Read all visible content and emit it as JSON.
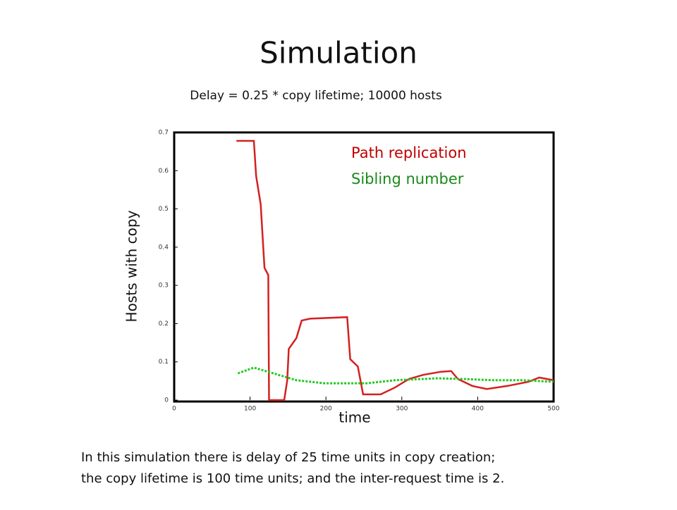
{
  "chart_data": {
    "type": "line",
    "title": "Simulation",
    "subtitle": "Delay = 0.25 * copy lifetime; 10000 hosts",
    "y_label": "Hosts with copy",
    "x_label": "time",
    "caption": [
      "In this simulation there is delay of 25 time units in copy creation;",
      "the copy lifetime is 100 time units; and the inter-request time is 2."
    ],
    "xlim": [
      0,
      500
    ],
    "xticks": [
      0,
      100,
      200,
      300,
      400,
      500
    ],
    "ylim": [
      0,
      0.7
    ],
    "yticks": [
      0,
      0.1,
      0.2,
      0.3,
      0.4,
      0.5,
      0.6,
      0.7
    ],
    "legend": "upper right",
    "series": [
      {
        "name": "Path replication",
        "color": "#d42020",
        "x": [
          82,
          105,
          108,
          114,
          119,
          124,
          125,
          145,
          149,
          151,
          161,
          168,
          179,
          228,
          232,
          242,
          249,
          272,
          291,
          309,
          328,
          351,
          365,
          374,
          393,
          412,
          439,
          467,
          481,
          500
        ],
        "values": [
          0.678,
          0.678,
          0.586,
          0.512,
          0.346,
          0.327,
          0,
          0,
          0.052,
          0.134,
          0.162,
          0.208,
          0.213,
          0.217,
          0.107,
          0.088,
          0.015,
          0.015,
          0.033,
          0.055,
          0.066,
          0.074,
          0.076,
          0.055,
          0.037,
          0.029,
          0.037,
          0.048,
          0.059,
          0.052
        ]
      },
      {
        "name": "Sibling number",
        "color": "#22c922",
        "x": [
          84,
          105,
          124,
          161,
          198,
          254,
          291,
          347,
          384,
          421,
          458,
          500
        ],
        "values": [
          0.07,
          0.085,
          0.074,
          0.052,
          0.044,
          0.044,
          0.052,
          0.057,
          0.055,
          0.052,
          0.052,
          0.048
        ]
      }
    ]
  }
}
